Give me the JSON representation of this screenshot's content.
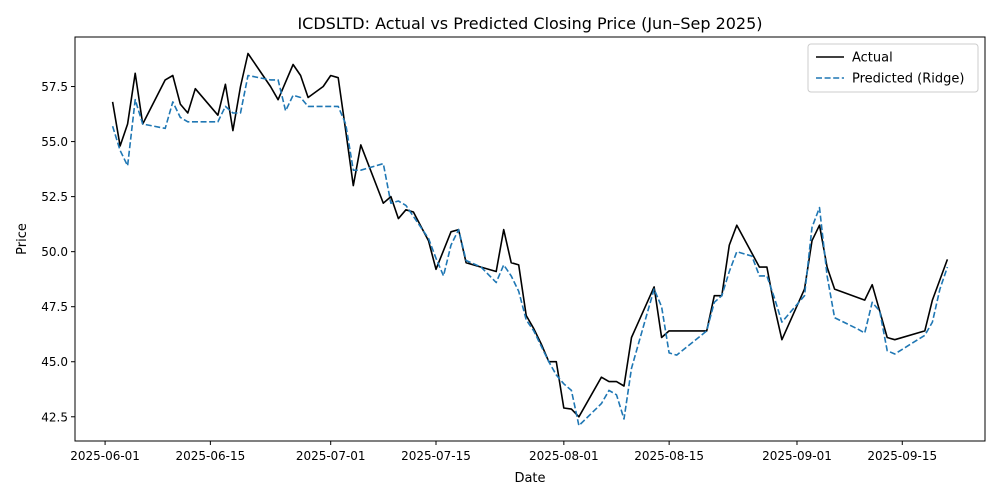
{
  "chart_data": {
    "type": "line",
    "title": "ICDSLTD: Actual vs Predicted Closing Price (Jun–Sep 2025)",
    "xlabel": "Date",
    "ylabel": "Price",
    "xlim": [
      "2025-05-28",
      "2025-09-26"
    ],
    "ylim": [
      41.4,
      59.75
    ],
    "x_ticks": [
      "2025-06-01",
      "2025-06-15",
      "2025-07-01",
      "2025-07-15",
      "2025-08-01",
      "2025-08-15",
      "2025-09-01",
      "2025-09-15"
    ],
    "y_ticks": [
      42.5,
      45.0,
      47.5,
      50.0,
      52.5,
      55.0,
      57.5
    ],
    "y_tick_labels": [
      "42.5",
      "45.0",
      "47.5",
      "50.0",
      "52.5",
      "55.0",
      "57.5"
    ],
    "grid": false,
    "legend": {
      "position": "upper right",
      "entries": [
        "Actual",
        "Predicted (Ridge)"
      ]
    },
    "series": [
      {
        "name": "Actual",
        "color": "#000000",
        "style": "solid",
        "points": [
          [
            "2025-06-02",
            56.8
          ],
          [
            "2025-06-03",
            54.8
          ],
          [
            "2025-06-04",
            55.8
          ],
          [
            "2025-06-05",
            58.1
          ],
          [
            "2025-06-06",
            55.8
          ],
          [
            "2025-06-09",
            57.8
          ],
          [
            "2025-06-10",
            58.0
          ],
          [
            "2025-06-11",
            56.7
          ],
          [
            "2025-06-12",
            56.3
          ],
          [
            "2025-06-13",
            57.4
          ],
          [
            "2025-06-16",
            56.2
          ],
          [
            "2025-06-17",
            57.6
          ],
          [
            "2025-06-18",
            55.5
          ],
          [
            "2025-06-19",
            57.5
          ],
          [
            "2025-06-20",
            59.0
          ],
          [
            "2025-06-23",
            57.5
          ],
          [
            "2025-06-24",
            56.9
          ],
          [
            "2025-06-25",
            57.7
          ],
          [
            "2025-06-26",
            58.5
          ],
          [
            "2025-06-27",
            58.0
          ],
          [
            "2025-06-28",
            57.0
          ],
          [
            "2025-06-30",
            57.5
          ],
          [
            "2025-07-01",
            58.0
          ],
          [
            "2025-07-02",
            57.9
          ],
          [
            "2025-07-03",
            55.5
          ],
          [
            "2025-07-04",
            53.0
          ],
          [
            "2025-07-05",
            54.85
          ],
          [
            "2025-07-08",
            52.2
          ],
          [
            "2025-07-09",
            52.5
          ],
          [
            "2025-07-10",
            51.5
          ],
          [
            "2025-07-11",
            51.9
          ],
          [
            "2025-07-12",
            51.8
          ],
          [
            "2025-07-14",
            50.5
          ],
          [
            "2025-07-15",
            49.2
          ],
          [
            "2025-07-17",
            50.9
          ],
          [
            "2025-07-18",
            51.0
          ],
          [
            "2025-07-19",
            49.5
          ],
          [
            "2025-07-21",
            49.3
          ],
          [
            "2025-07-23",
            49.1
          ],
          [
            "2025-07-24",
            51.0
          ],
          [
            "2025-07-25",
            49.5
          ],
          [
            "2025-07-26",
            49.4
          ],
          [
            "2025-07-27",
            47.1
          ],
          [
            "2025-07-28",
            46.5
          ],
          [
            "2025-07-29",
            45.8
          ],
          [
            "2025-07-30",
            45.0
          ],
          [
            "2025-07-31",
            45.0
          ],
          [
            "2025-08-01",
            42.9
          ],
          [
            "2025-08-02",
            42.85
          ],
          [
            "2025-08-03",
            42.5
          ],
          [
            "2025-08-06",
            44.3
          ],
          [
            "2025-08-07",
            44.1
          ],
          [
            "2025-08-08",
            44.1
          ],
          [
            "2025-08-09",
            43.9
          ],
          [
            "2025-08-10",
            46.1
          ],
          [
            "2025-08-13",
            48.4
          ],
          [
            "2025-08-14",
            46.1
          ],
          [
            "2025-08-15",
            46.4
          ],
          [
            "2025-08-20",
            46.4
          ],
          [
            "2025-08-21",
            48.0
          ],
          [
            "2025-08-22",
            48.0
          ],
          [
            "2025-08-23",
            50.3
          ],
          [
            "2025-08-24",
            51.2
          ],
          [
            "2025-08-27",
            49.3
          ],
          [
            "2025-08-28",
            49.3
          ],
          [
            "2025-08-29",
            47.5
          ],
          [
            "2025-08-30",
            46.0
          ],
          [
            "2025-09-02",
            48.3
          ],
          [
            "2025-09-03",
            50.5
          ],
          [
            "2025-09-04",
            51.2
          ],
          [
            "2025-09-05",
            49.3
          ],
          [
            "2025-09-06",
            48.3
          ],
          [
            "2025-09-10",
            47.8
          ],
          [
            "2025-09-11",
            48.5
          ],
          [
            "2025-09-13",
            46.1
          ],
          [
            "2025-09-14",
            46.0
          ],
          [
            "2025-09-18",
            46.4
          ],
          [
            "2025-09-19",
            47.8
          ],
          [
            "2025-09-21",
            49.65
          ]
        ]
      },
      {
        "name": "Predicted (Ridge)",
        "color": "#1f77b4",
        "style": "dashed",
        "points": [
          [
            "2025-06-02",
            55.7
          ],
          [
            "2025-06-03",
            54.6
          ],
          [
            "2025-06-04",
            53.9
          ],
          [
            "2025-06-05",
            56.9
          ],
          [
            "2025-06-06",
            55.8
          ],
          [
            "2025-06-09",
            55.6
          ],
          [
            "2025-06-10",
            56.8
          ],
          [
            "2025-06-11",
            56.1
          ],
          [
            "2025-06-12",
            55.9
          ],
          [
            "2025-06-16",
            55.9
          ],
          [
            "2025-06-17",
            56.6
          ],
          [
            "2025-06-18",
            56.3
          ],
          [
            "2025-06-19",
            56.3
          ],
          [
            "2025-06-20",
            58.0
          ],
          [
            "2025-06-23",
            57.8
          ],
          [
            "2025-06-24",
            57.8
          ],
          [
            "2025-06-25",
            56.4
          ],
          [
            "2025-06-26",
            57.1
          ],
          [
            "2025-06-27",
            57.0
          ],
          [
            "2025-06-28",
            56.6
          ],
          [
            "2025-07-02",
            56.6
          ],
          [
            "2025-07-03",
            55.8
          ],
          [
            "2025-07-04",
            53.7
          ],
          [
            "2025-07-05",
            53.7
          ],
          [
            "2025-07-07",
            53.9
          ],
          [
            "2025-07-08",
            54.0
          ],
          [
            "2025-07-09",
            52.2
          ],
          [
            "2025-07-10",
            52.3
          ],
          [
            "2025-07-11",
            52.1
          ],
          [
            "2025-07-12",
            51.6
          ],
          [
            "2025-07-14",
            50.6
          ],
          [
            "2025-07-15",
            49.7
          ],
          [
            "2025-07-16",
            48.9
          ],
          [
            "2025-07-17",
            50.3
          ],
          [
            "2025-07-18",
            51.0
          ],
          [
            "2025-07-19",
            49.6
          ],
          [
            "2025-07-21",
            49.3
          ],
          [
            "2025-07-23",
            48.6
          ],
          [
            "2025-07-24",
            49.4
          ],
          [
            "2025-07-25",
            48.9
          ],
          [
            "2025-07-26",
            48.2
          ],
          [
            "2025-07-27",
            46.9
          ],
          [
            "2025-07-28",
            46.4
          ],
          [
            "2025-07-29",
            45.7
          ],
          [
            "2025-07-30",
            45.0
          ],
          [
            "2025-07-31",
            44.4
          ],
          [
            "2025-08-01",
            44.0
          ],
          [
            "2025-08-02",
            43.7
          ],
          [
            "2025-08-03",
            42.1
          ],
          [
            "2025-08-06",
            43.1
          ],
          [
            "2025-08-07",
            43.7
          ],
          [
            "2025-08-08",
            43.5
          ],
          [
            "2025-08-09",
            42.4
          ],
          [
            "2025-08-10",
            44.7
          ],
          [
            "2025-08-11",
            45.9
          ],
          [
            "2025-08-13",
            48.3
          ],
          [
            "2025-08-14",
            47.5
          ],
          [
            "2025-08-15",
            45.4
          ],
          [
            "2025-08-16",
            45.3
          ],
          [
            "2025-08-20",
            46.4
          ],
          [
            "2025-08-21",
            47.7
          ],
          [
            "2025-08-22",
            48.0
          ],
          [
            "2025-08-23",
            49.1
          ],
          [
            "2025-08-24",
            50.0
          ],
          [
            "2025-08-26",
            49.8
          ],
          [
            "2025-08-27",
            48.9
          ],
          [
            "2025-08-28",
            48.9
          ],
          [
            "2025-08-29",
            47.9
          ],
          [
            "2025-08-30",
            46.8
          ],
          [
            "2025-09-02",
            48.0
          ],
          [
            "2025-09-03",
            51.1
          ],
          [
            "2025-09-04",
            52.0
          ],
          [
            "2025-09-05",
            48.9
          ],
          [
            "2025-09-06",
            47.0
          ],
          [
            "2025-09-09",
            46.5
          ],
          [
            "2025-09-10",
            46.3
          ],
          [
            "2025-09-11",
            47.7
          ],
          [
            "2025-09-12",
            47.3
          ],
          [
            "2025-09-13",
            45.5
          ],
          [
            "2025-09-14",
            45.35
          ],
          [
            "2025-09-18",
            46.2
          ],
          [
            "2025-09-19",
            46.8
          ],
          [
            "2025-09-20",
            48.3
          ],
          [
            "2025-09-21",
            49.3
          ]
        ]
      }
    ]
  }
}
